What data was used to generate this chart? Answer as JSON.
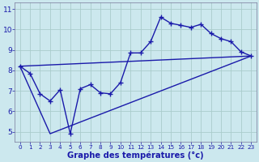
{
  "xlabel": "Graphe des températures (°c)",
  "bg_color": "#cce8ee",
  "grid_color": "#aacccc",
  "line_color": "#1a1aaa",
  "xlim": [
    -0.5,
    23.5
  ],
  "ylim": [
    4.5,
    11.3
  ],
  "xticks": [
    0,
    1,
    2,
    3,
    4,
    5,
    6,
    7,
    8,
    9,
    10,
    11,
    12,
    13,
    14,
    15,
    16,
    17,
    18,
    19,
    20,
    21,
    22,
    23
  ],
  "yticks": [
    5,
    6,
    7,
    8,
    9,
    10,
    11
  ],
  "line1_x": [
    0,
    1,
    2,
    3,
    4,
    5,
    6,
    7,
    8,
    9,
    10,
    11,
    12,
    13,
    14,
    15,
    16,
    17,
    18,
    19,
    20,
    21,
    22,
    23
  ],
  "line1_y": [
    8.2,
    7.85,
    6.85,
    6.5,
    7.05,
    4.9,
    7.1,
    7.3,
    6.9,
    6.85,
    7.4,
    8.85,
    8.85,
    9.4,
    10.6,
    10.3,
    10.2,
    10.1,
    10.25,
    9.8,
    9.55,
    9.4,
    8.9,
    8.7
  ],
  "line2_x": [
    0,
    23
  ],
  "line2_y": [
    8.2,
    8.7
  ],
  "line3_x": [
    0,
    3,
    23
  ],
  "line3_y": [
    8.2,
    4.9,
    8.7
  ],
  "marker": "+",
  "marker_size": 4,
  "linewidth": 1.0,
  "tick_fontsize_x": 5.2,
  "tick_fontsize_y": 6.5,
  "xlabel_fontsize": 7.2
}
